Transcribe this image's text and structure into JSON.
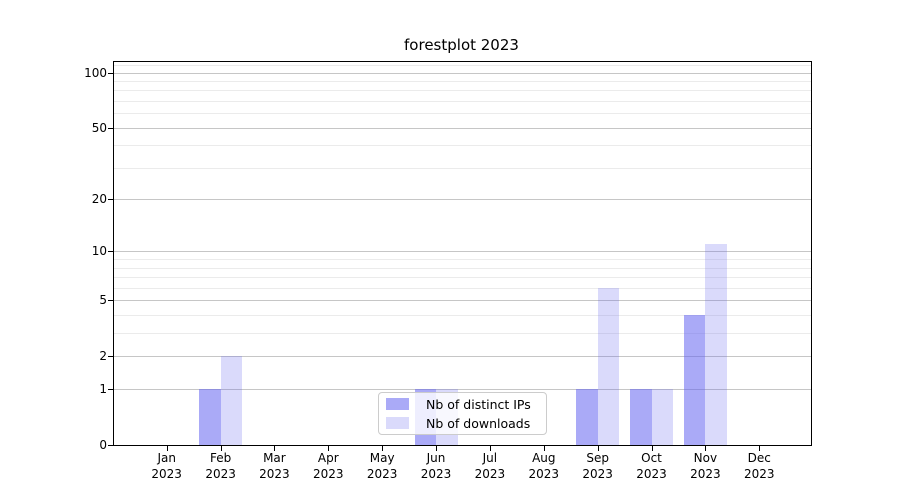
{
  "chart_data": {
    "type": "bar",
    "title": "forestplot 2023",
    "categories": [
      {
        "month": "Jan",
        "year": "2023"
      },
      {
        "month": "Feb",
        "year": "2023"
      },
      {
        "month": "Mar",
        "year": "2023"
      },
      {
        "month": "Apr",
        "year": "2023"
      },
      {
        "month": "May",
        "year": "2023"
      },
      {
        "month": "Jun",
        "year": "2023"
      },
      {
        "month": "Jul",
        "year": "2023"
      },
      {
        "month": "Aug",
        "year": "2023"
      },
      {
        "month": "Sep",
        "year": "2023"
      },
      {
        "month": "Oct",
        "year": "2023"
      },
      {
        "month": "Nov",
        "year": "2023"
      },
      {
        "month": "Dec",
        "year": "2023"
      }
    ],
    "series": [
      {
        "name": "Nb of distinct IPs",
        "color": "rgba(100,100,240,0.55)",
        "values": [
          0,
          1,
          0,
          0,
          0,
          1,
          0,
          0,
          1,
          1,
          4,
          0
        ]
      },
      {
        "name": "Nb of downloads",
        "color": "rgba(100,100,240,0.24)",
        "values": [
          0,
          2,
          0,
          0,
          0,
          1,
          0,
          0,
          6,
          1,
          11,
          0
        ]
      }
    ],
    "xlabel": "",
    "ylabel": "",
    "yscale": "log1p",
    "ylim": [
      0,
      114
    ],
    "y_major_ticks": [
      0,
      1,
      2,
      5,
      10,
      20,
      50,
      100
    ],
    "y_minor_ticks": [
      3,
      4,
      6,
      7,
      8,
      9,
      30,
      40,
      60,
      70,
      80,
      90,
      110
    ],
    "grid": "horizontal",
    "legend_position": "lower center"
  },
  "colors": {
    "bar_distinct_ips": "rgba(100,100,240,0.55)",
    "bar_downloads": "rgba(100,100,240,0.24)",
    "grid_major": "#c6c6c6",
    "grid_minor": "#ebebeb",
    "axis": "#000000",
    "background": "#ffffff"
  }
}
